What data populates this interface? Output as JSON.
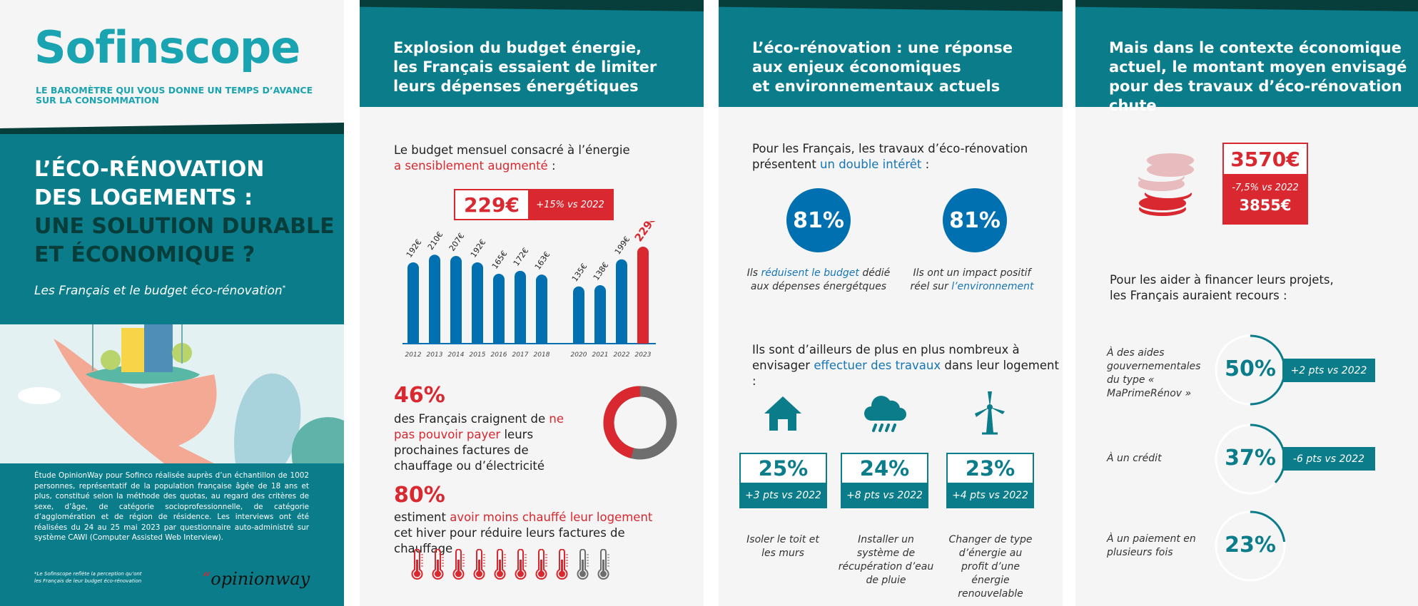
{
  "colors": {
    "teal": "#0b7c8a",
    "dark_teal": "#073d3a",
    "logo_teal": "#1aa3b0",
    "blue": "#0070b0",
    "red": "#d9282f",
    "grey": "#6e6e6e"
  },
  "cover": {
    "logo": "Sofinscope",
    "tagline_1": "LE BAROMÈTRE QUI VOUS DONNE UN TEMPS D’AVANCE",
    "tagline_2": "SUR LA CONSOMMATION",
    "title_1": "L’ÉCO-RÉNOVATION",
    "title_2": "DES LOGEMENTS :",
    "title_3": "UNE SOLUTION DURABLE",
    "title_4": "ET ÉCONOMIQUE ?",
    "subtitle": "Les Français et le budget éco-rénovation",
    "subtitle_mark": "*",
    "study": "Étude OpinionWay pour Sofinco réalisée auprès d’un échantillon de 1002 personnes, représentatif de la population française âgée de 18 ans et plus, constitué selon la méthode des quotas, au regard des critères de sexe, d’âge, de catégorie socioprofessionnelle, de catégorie d’agglomération et de région de résidence. Les interviews ont été réalisées du 24 au 25 mai 2023 par questionnaire auto-administré sur système CAWI (Computer Assisted Web Interview).",
    "footnote_1": "*Le Sofinscope reflète la perception qu’ont",
    "footnote_2": "les Français de leur budget éco-rénovation",
    "partner_logo": "opinionway"
  },
  "energy": {
    "title_1": "Explosion du budget énergie,",
    "title_2": "les Français essaient de limiter",
    "title_3": "leurs dépenses énergétiques",
    "intro_1": "Le budget mensuel consacré à l’énergie",
    "intro_2_hl": "a sensiblement augmenté",
    "intro_2_end": " :",
    "budget_value": "229€",
    "budget_change": "+15% vs 2022",
    "stat1_value": "46%",
    "stat1_a": "des Français craignent de ",
    "stat1_hl": "ne pas pouvoir payer",
    "stat1_b": " leurs prochaines factures de chauffage ou d’électricité",
    "stat1_percent": 46,
    "stat2_value": "80%",
    "stat2_a": "estiment ",
    "stat2_hl": "avoir moins chauffé leur logement",
    "stat2_b": " cet hiver pour réduire leurs factures de chauffage",
    "stat2_icons_filled": 8,
    "stat2_icons_total": 10
  },
  "chart_data": {
    "type": "bar",
    "categories": [
      "2012",
      "2013",
      "2014",
      "2015",
      "2016",
      "2017",
      "2018",
      "2020",
      "2021",
      "2022",
      "2023"
    ],
    "values": [
      192,
      210,
      207,
      192,
      165,
      172,
      163,
      135,
      138,
      199,
      229
    ],
    "labels": [
      "192€",
      "210€",
      "207€",
      "192€",
      "165€",
      "172€",
      "163€",
      "135€",
      "138€",
      "199€",
      "229€"
    ],
    "highlight": "2023",
    "unit": "€"
  },
  "eco": {
    "title_1": "L’éco-rénovation :  une réponse",
    "title_2": "aux enjeux économiques",
    "title_3": "et environnementaux actuels",
    "intro_1": "Pour les Français, les travaux d’éco-rénovation",
    "intro_2": "présentent ",
    "intro_2_hl": "un double intérêt",
    "intro_2_end": " :",
    "benefits": [
      {
        "value": "81%",
        "a": "Ils ",
        "hl": "réduisent le budget",
        "b": " dédié aux dépenses énergétques"
      },
      {
        "value": "81%",
        "a": "Ils ont un impact positif réel sur ",
        "hl": "l’environnement",
        "b": ""
      }
    ],
    "works_intro_1": "Ils sont d’ailleurs de plus en plus nombreux à",
    "works_intro_2": "envisager ",
    "works_intro_hl": "effectuer des travaux",
    "works_intro_end": " dans leur logement :",
    "works": [
      {
        "icon": "house-icon",
        "value": "25%",
        "change": "+3 pts vs 2022",
        "label": "Isoler le toit et les murs"
      },
      {
        "icon": "rain-cloud-icon",
        "value": "24%",
        "change": "+8 pts vs 2022",
        "label": "Installer un système de récupération d’eau de pluie"
      },
      {
        "icon": "wind-turbine-icon",
        "value": "23%",
        "change": "+4 pts vs 2022",
        "label": "Changer de type d’énergie au profit d’une énergie renouvelable"
      }
    ]
  },
  "budget": {
    "title_1": "Mais dans le contexte économique",
    "title_2": "actuel, le montant moyen envisagé",
    "title_3": "pour des travaux d’éco-rénovation chute",
    "amount": "3570€",
    "change": "-7,5% vs 2022",
    "previous": "3855€",
    "intro_1": "Pour les aider à financer leurs projets,",
    "intro_2": "les Français auraient recours :",
    "funding": [
      {
        "label": "À des aides gouvernementales du type « MaPrimeRénov »",
        "value": "50%",
        "percent": 50,
        "change": "+2 pts vs 2022"
      },
      {
        "label": "À un crédit",
        "value": "37%",
        "percent": 37,
        "change": "-6 pts vs 2022"
      },
      {
        "label": "À un paiement en plusieurs fois",
        "value": "23%",
        "percent": 23,
        "change": ""
      }
    ]
  }
}
